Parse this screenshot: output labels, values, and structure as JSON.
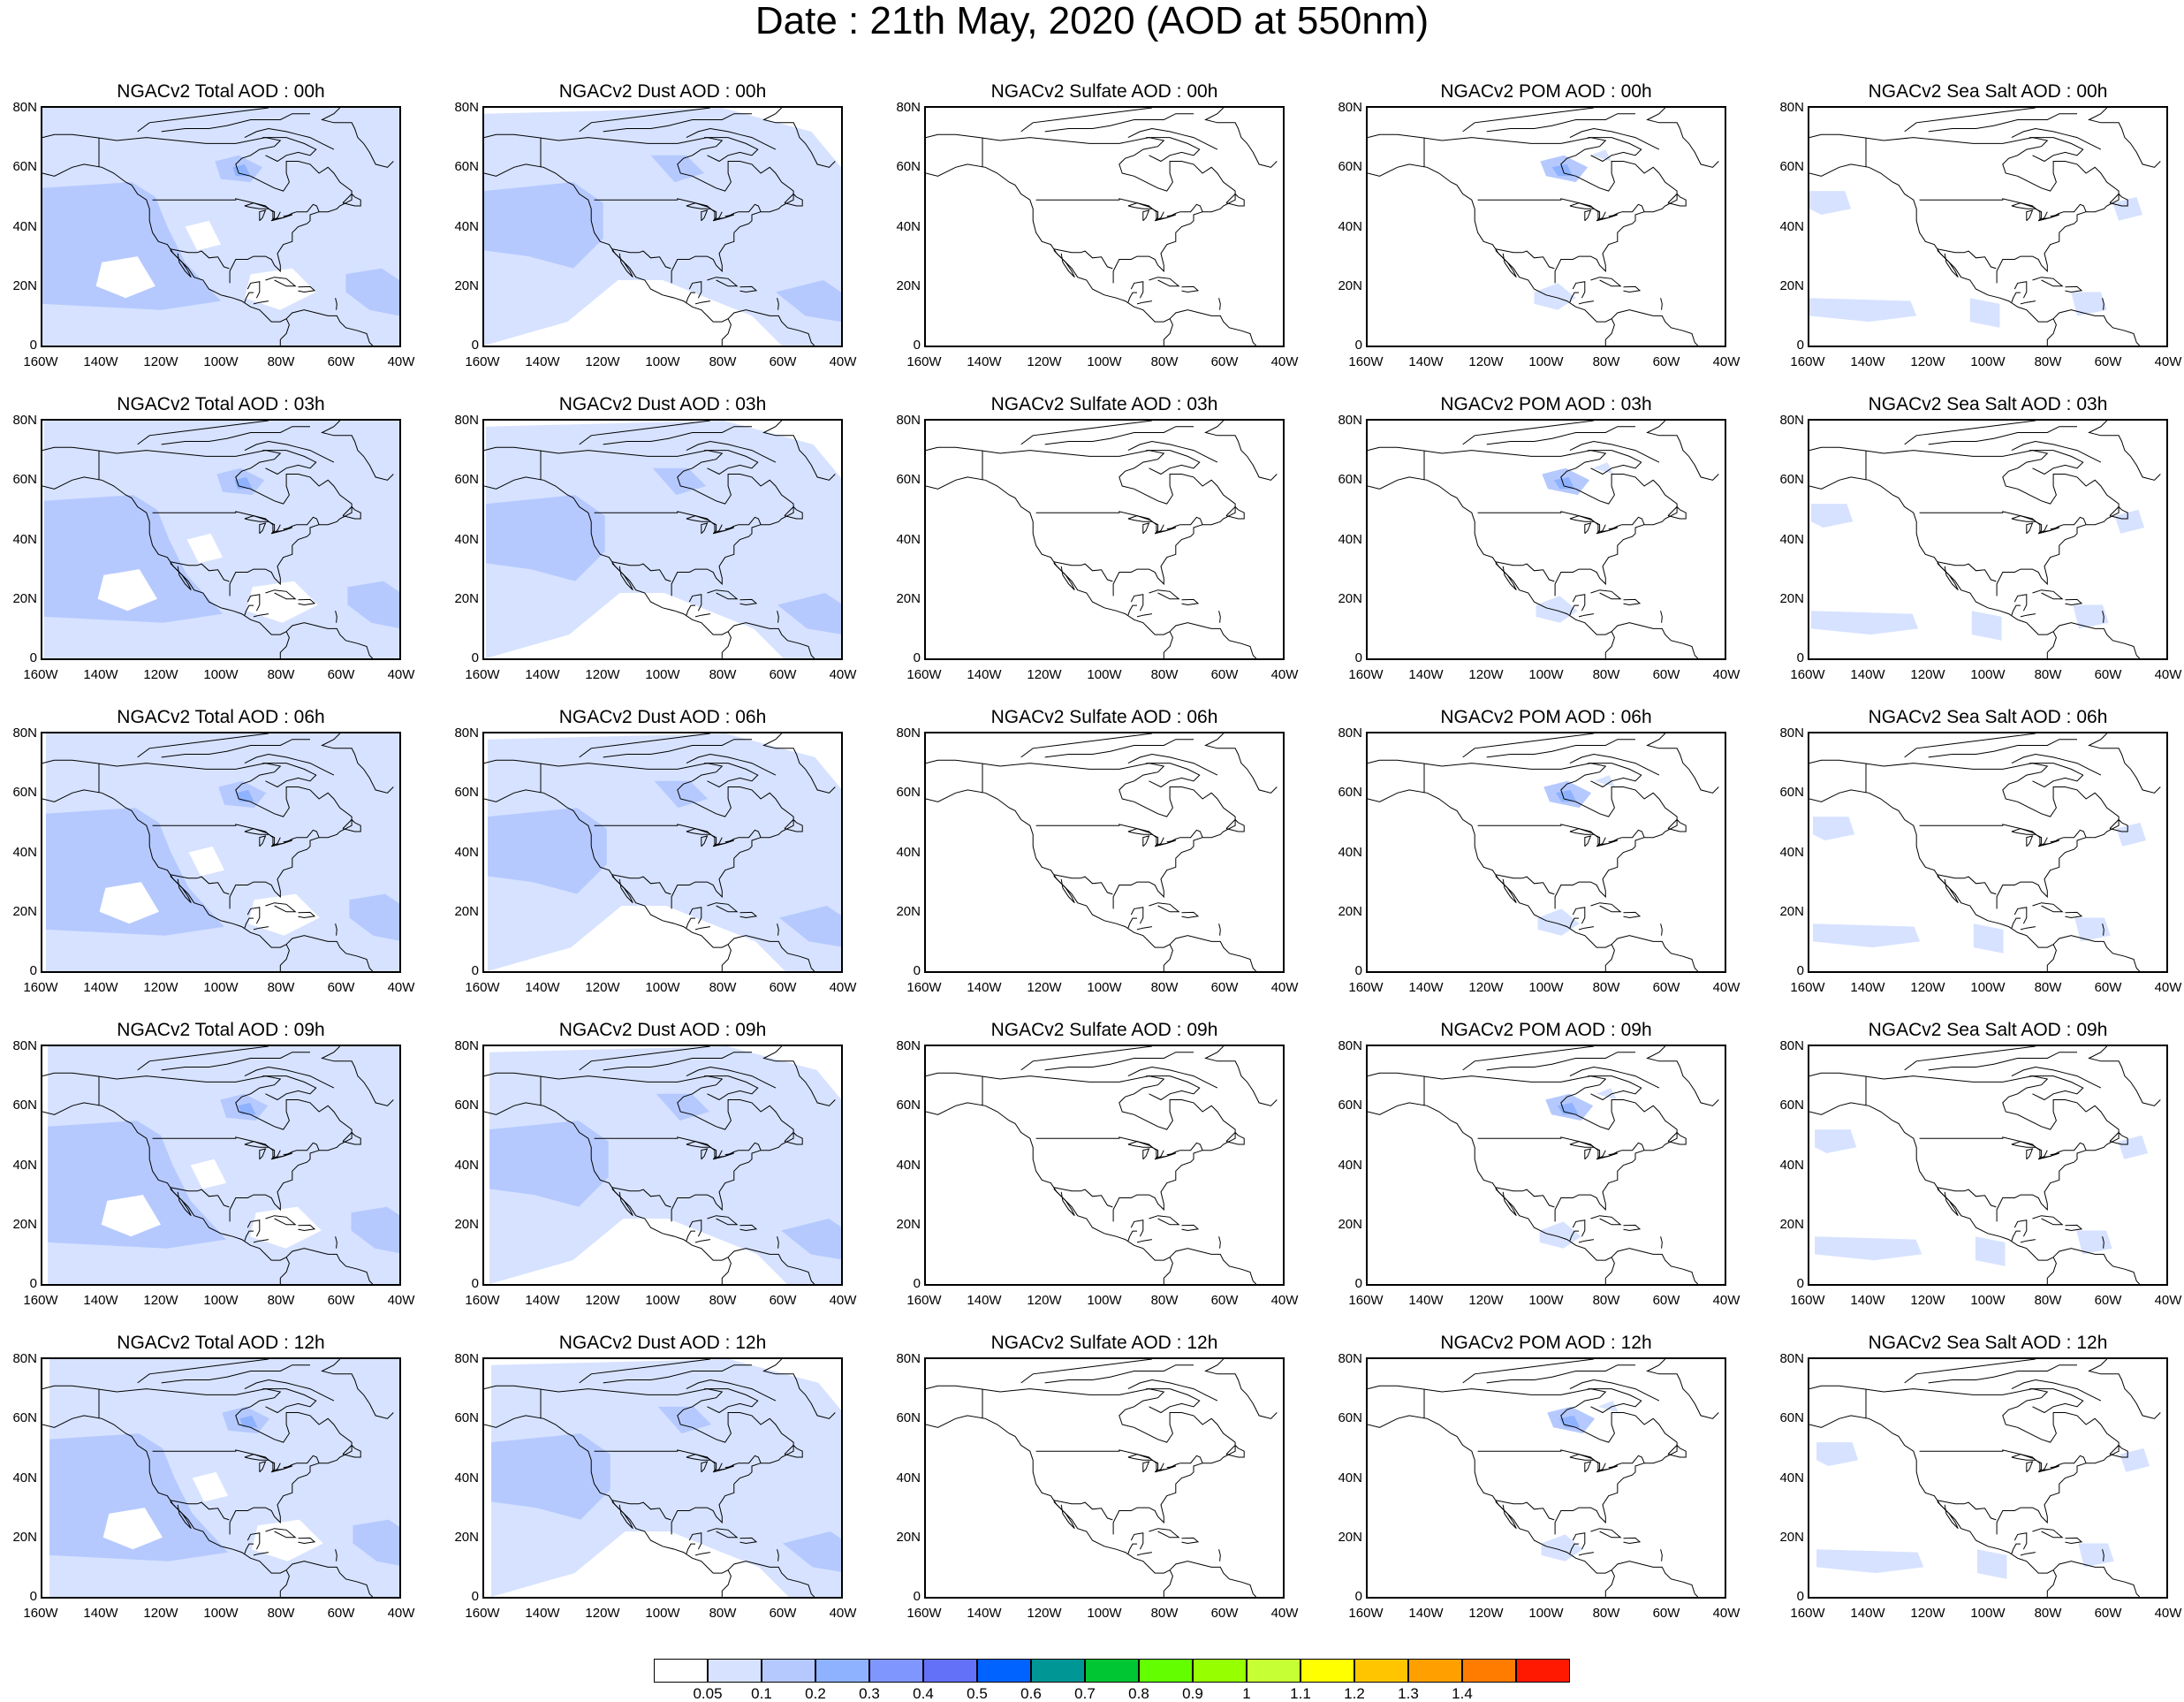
{
  "title": "Date : 21th May, 2020 (AOD at 550nm)",
  "axes": {
    "lat_labels": [
      "80N",
      "60N",
      "40N",
      "20N",
      "0"
    ],
    "lon_labels": [
      "160W",
      "140W",
      "120W",
      "100W",
      "80W",
      "60W",
      "40W"
    ]
  },
  "panel_titles": [
    [
      "NGACv2 Total AOD : 00h",
      "NGACv2 Dust AOD : 00h",
      "NGACv2 Sulfate AOD : 00h",
      "NGACv2 POM AOD : 00h",
      "NGACv2 Sea Salt AOD : 00h"
    ],
    [
      "NGACv2 Total AOD : 03h",
      "NGACv2 Dust AOD : 03h",
      "NGACv2 Sulfate AOD : 03h",
      "NGACv2 POM AOD : 03h",
      "NGACv2 Sea Salt AOD : 03h"
    ],
    [
      "NGACv2 Total AOD : 06h",
      "NGACv2 Dust AOD : 06h",
      "NGACv2 Sulfate AOD : 06h",
      "NGACv2 POM AOD : 06h",
      "NGACv2 Sea Salt AOD : 06h"
    ],
    [
      "NGACv2 Total AOD : 09h",
      "NGACv2 Dust AOD : 09h",
      "NGACv2 Sulfate AOD : 09h",
      "NGACv2 POM AOD : 09h",
      "NGACv2 Sea Salt  AOD : 09h"
    ],
    [
      "NGACv2 Total AOD  : 12h",
      "NGACv2 Dust AOD : 12h",
      "NGACv2 Sulfate AOD : 12h",
      "NGACv2 POM  AOD : 12h",
      "NGACv2 Sea Salt  AOD : 12h"
    ]
  ],
  "colorbar": {
    "labels": [
      "0.05",
      "0.1",
      "0.2",
      "0.3",
      "0.4",
      "0.5",
      "0.6",
      "0.7",
      "0.8",
      "0.9",
      "1",
      "1.1",
      "1.2",
      "1.3",
      "1.4"
    ],
    "colors": [
      "#ffffff",
      "#d6e2ff",
      "#b5c9ff",
      "#8eb2ff",
      "#7f96ff",
      "#6370f8",
      "#0063ff",
      "#009696",
      "#00c633",
      "#63ff00",
      "#96ff00",
      "#c6ff33",
      "#ffff00",
      "#ffc600",
      "#ffa000",
      "#ff7c00",
      "#ff1900"
    ]
  },
  "colors": {
    "aod_level_1": "#d6e2ff",
    "aod_level_2": "#b5c9ff",
    "aod_level_3": "#8eb2ff",
    "coastline": "#000000"
  }
}
